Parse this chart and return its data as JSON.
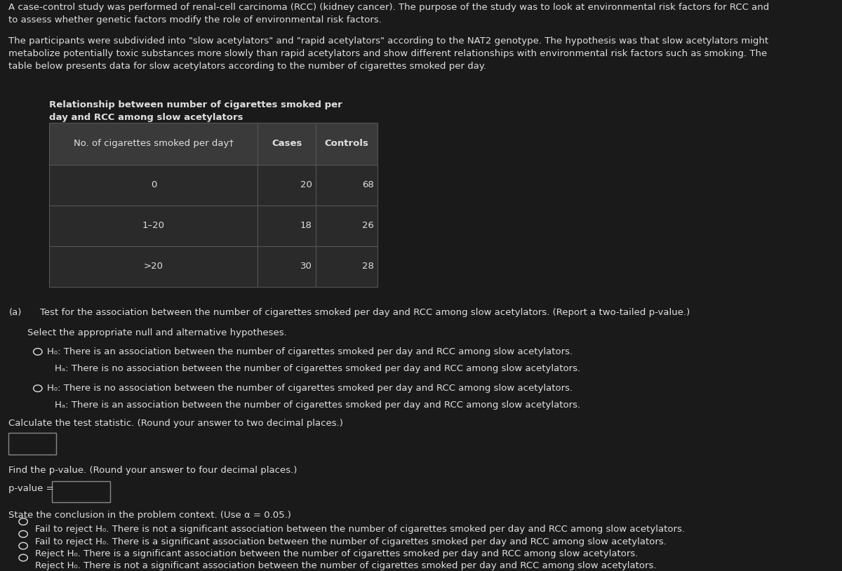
{
  "bg_color": "#1a1a1a",
  "text_color": "#e0e0e0",
  "intro_para1": "A case-control study was performed of renal-cell carcinoma (RCC) (kidney cancer). The purpose of the study was to look at environmental risk factors for RCC and\nto assess whether genetic factors modify the role of environmental risk factors.",
  "intro_para2": "The participants were subdivided into \"slow acetylators\" and \"rapid acetylators\" according to the NAT2 genotype. The hypothesis was that slow acetylators might\nmetabolize potentially toxic substances more slowly than rapid acetylators and show different relationships with environmental risk factors such as smoking. The\ntable below presents data for slow acetylators according to the number of cigarettes smoked per day.",
  "table_title_line1": "Relationship between number of cigarettes smoked per",
  "table_title_line2": "day and RCC among slow acetylators",
  "table_col_headers": [
    "No. of cigarettes smoked per day†",
    "Cases",
    "Controls"
  ],
  "table_rows": [
    [
      "0",
      "20",
      "68"
    ],
    [
      "1–20",
      "18",
      "26"
    ],
    [
      ">20",
      "30",
      "28"
    ]
  ],
  "table_header_bg": "#3a3a3a",
  "table_row_bg": "#2a2a2a",
  "table_border_color": "#555555",
  "part_a_label": "(a)",
  "part_a_text": "Test for the association between the number of cigarettes smoked per day and RCC among slow acetylators. (Report a two-tailed p-value.)",
  "hypotheses_label": "Select the appropriate null and alternative hypotheses.",
  "hyp1_h0": "H₀: There is an association between the number of cigarettes smoked per day and RCC among slow acetylators.",
  "hyp1_ha": "Hₐ: There is no association between the number of cigarettes smoked per day and RCC among slow acetylators.",
  "hyp2_h0": "H₀: There is no association between the number of cigarettes smoked per day and RCC among slow acetylators.",
  "hyp2_ha": "Hₐ: There is an association between the number of cigarettes smoked per day and RCC among slow acetylators.",
  "calc_label": "Calculate the test statistic. (Round your answer to two decimal places.)",
  "pvalue_label": "Find the p-value. (Round your answer to four decimal places.)",
  "pvalue_prefix": "p-value =",
  "conclusion_label": "State the conclusion in the problem context. (Use α = 0.05.)",
  "conclusions": [
    "Fail to reject H₀. There is not a significant association between the number of cigarettes smoked per day and RCC among slow acetylators.",
    "Fail to reject H₀. There is a significant association between the number of cigarettes smoked per day and RCC among slow acetylators.",
    "Reject H₀. There is a significant association between the number of cigarettes smoked per day and RCC among slow acetylators.",
    "Reject H₀. There is not a significant association between the number of cigarettes smoked per day and RCC among slow acetylators."
  ],
  "font_size_body": 9.5,
  "font_size_table": 9.5,
  "col_splits": [
    0.068,
    0.355,
    0.435,
    0.52
  ],
  "row_tops": [
    0.783,
    0.708,
    0.636,
    0.564,
    0.492
  ]
}
